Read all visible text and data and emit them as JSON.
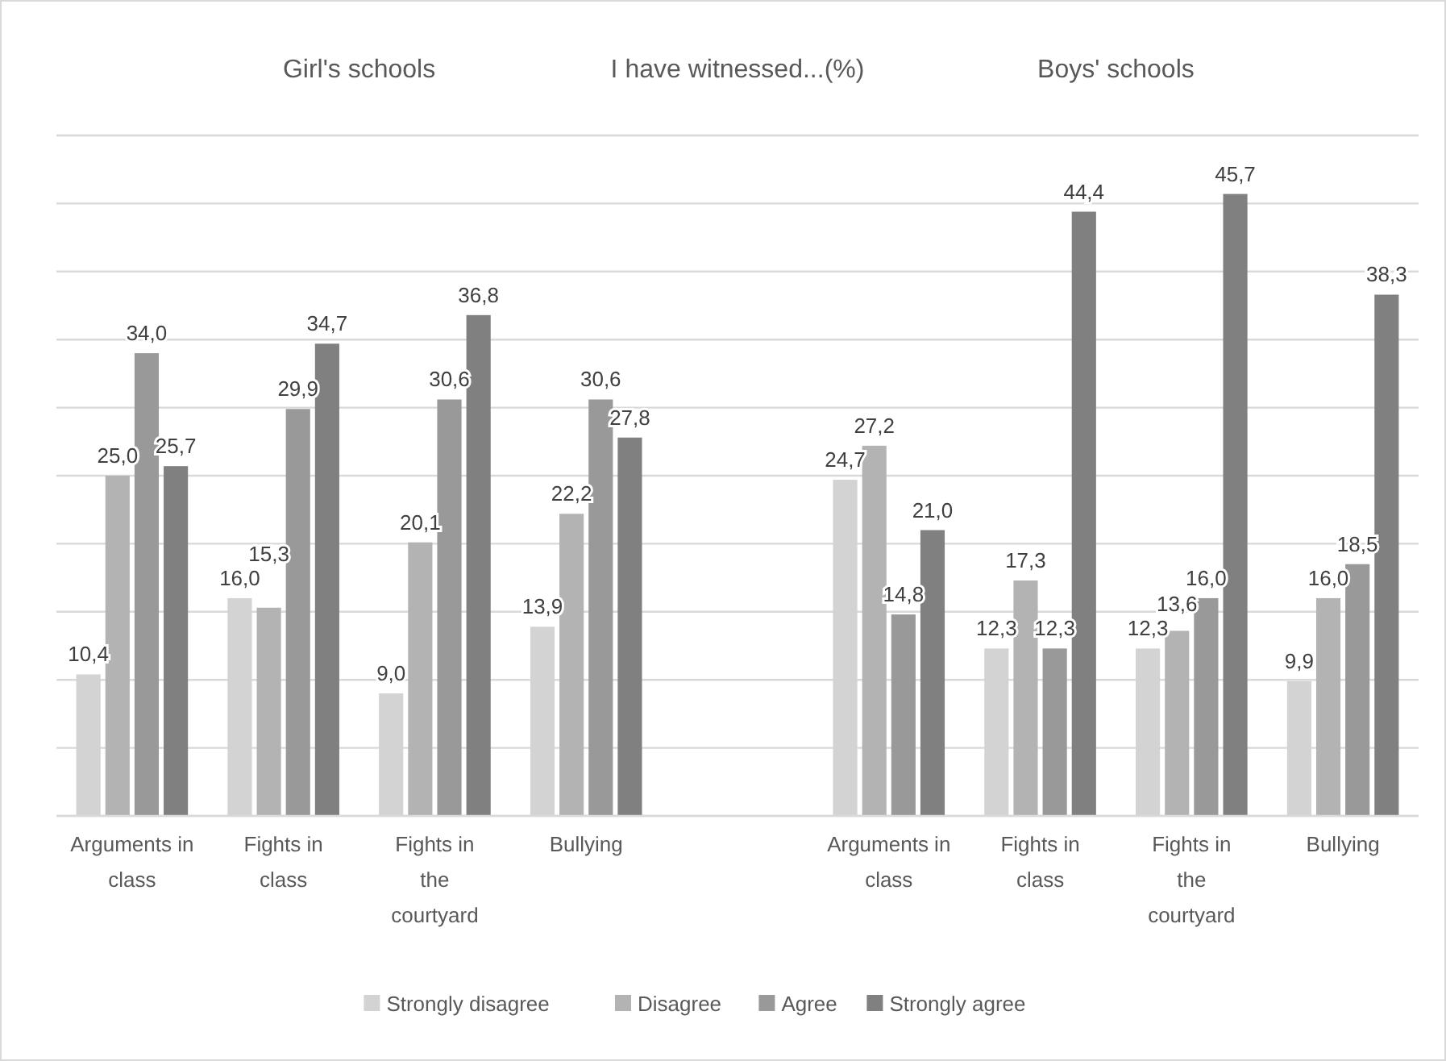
{
  "chart_data": {
    "type": "bar",
    "title": "I have witnessed...(%)",
    "annotations": [
      "Girl's schools",
      "Boys' schools"
    ],
    "categories": [
      "Arguments in class",
      "Fights in class",
      "Fights in the courtyard",
      "Bullying",
      null,
      "Arguments in class",
      "Fights in class",
      "Fights in the courtyard",
      "Bullying"
    ],
    "series": [
      {
        "name": "Strongly disagree",
        "color": "#d3d3d3",
        "values": [
          10.4,
          16.0,
          9.0,
          13.9,
          null,
          24.7,
          12.3,
          12.3,
          9.9
        ],
        "value_labels": [
          "10,4",
          "16,0",
          "9,0",
          "13,9",
          null,
          "24,7",
          "12,3",
          "12,3",
          "9,9"
        ]
      },
      {
        "name": "Disagree",
        "color": "#b3b3b3",
        "values": [
          25.0,
          15.3,
          20.1,
          22.2,
          null,
          27.2,
          17.3,
          13.6,
          16.0
        ],
        "value_labels": [
          "25,0",
          "15,3",
          "20,1",
          "22,2",
          null,
          "27,2",
          "17,3",
          "13,6",
          "16,0"
        ]
      },
      {
        "name": "Agree",
        "color": "#999999",
        "values": [
          34.0,
          29.9,
          30.6,
          30.6,
          null,
          14.8,
          12.3,
          16.0,
          18.5
        ],
        "value_labels": [
          "34,0",
          "29,9",
          "30,6",
          "30,6",
          null,
          "14,8",
          "12,3",
          "16,0",
          "18,5"
        ]
      },
      {
        "name": "Strongly agree",
        "color": "#808080",
        "values": [
          25.7,
          34.7,
          36.8,
          27.8,
          null,
          21.0,
          44.4,
          45.7,
          38.3
        ],
        "value_labels": [
          "25,7",
          "34,7",
          "36,8",
          "27,8",
          null,
          "21,0",
          "44,4",
          "45,7",
          "38,3"
        ]
      }
    ],
    "ylim": [
      0,
      50
    ],
    "yticks": [
      {
        "value": 0,
        "label": null
      },
      {
        "value": 5,
        "label": null
      },
      {
        "value": 10,
        "label": null
      },
      {
        "value": 15,
        "label": null
      },
      {
        "value": 20,
        "label": null
      },
      {
        "value": 25,
        "label": null
      },
      {
        "value": 30,
        "label": null
      },
      {
        "value": 35,
        "label": null
      },
      {
        "value": 40,
        "label": null
      },
      {
        "value": 45,
        "label": null
      },
      {
        "value": 50,
        "label": null
      }
    ],
    "tick_labels": "x",
    "grid": "y",
    "legend": "bottom"
  }
}
